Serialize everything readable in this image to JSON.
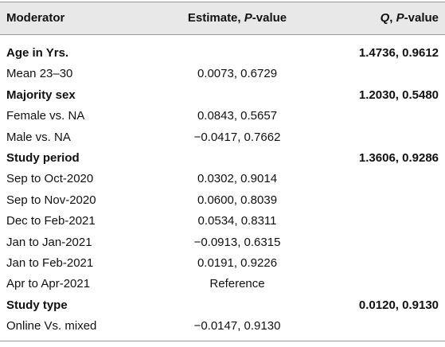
{
  "table": {
    "header": [
      [
        "Moderator"
      ],
      [
        "Estimate, ",
        "P",
        "-value"
      ],
      [
        "Q",
        ", ",
        "P",
        "-value"
      ]
    ],
    "rows": [
      {
        "label": "Age in Yrs.",
        "group": true,
        "q": "1.4736, 0.9612"
      },
      {
        "label": "Mean 23–30",
        "estimate": "0.0073, 0.6729"
      },
      {
        "label": "Majority sex",
        "group": true,
        "q": "1.2030, 0.5480"
      },
      {
        "label": "Female vs. NA",
        "estimate": "0.0843, 0.5657"
      },
      {
        "label": "Male vs. NA",
        "estimate": "−0.0417, 0.7662"
      },
      {
        "label": "Study period",
        "group": true,
        "q": "1.3606, 0.9286"
      },
      {
        "label": "Sep to Oct-2020",
        "estimate": "0.0302, 0.9014"
      },
      {
        "label": "Sep to Nov-2020",
        "estimate": "0.0600, 0.8039"
      },
      {
        "label": "Dec to Feb-2021",
        "estimate": "0.0534, 0.8311"
      },
      {
        "label": "Jan to Jan-2021",
        "estimate": "−0.0913, 0.6315"
      },
      {
        "label": "Jan to Feb-2021",
        "estimate": "0.0191, 0.9226"
      },
      {
        "label": "Apr to Apr-2021",
        "estimate": "Reference"
      },
      {
        "label": "Study type",
        "group": true,
        "q": "0.0120, 0.9130"
      },
      {
        "label": "Online Vs. mixed",
        "estimate": "−0.0147, 0.9130"
      }
    ]
  }
}
